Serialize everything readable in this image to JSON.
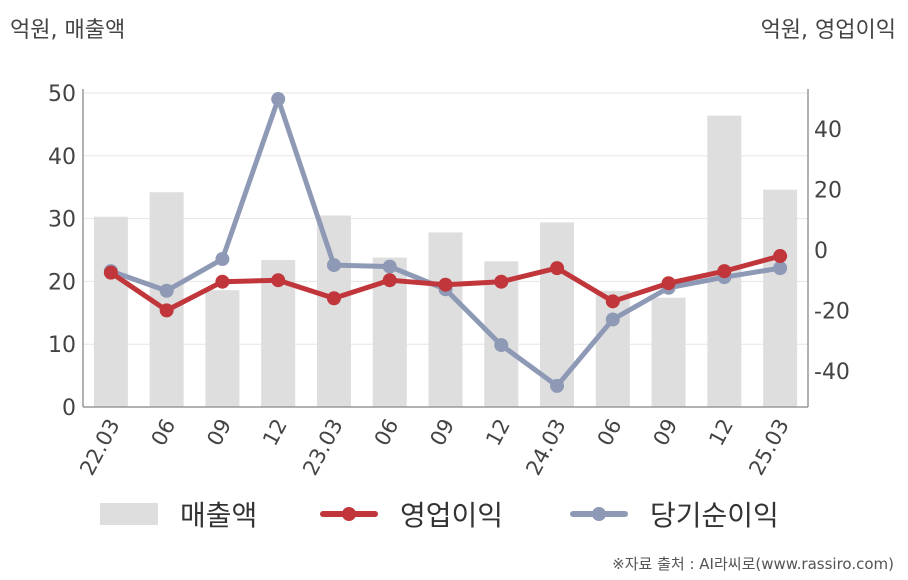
{
  "units": {
    "left": "억원, 매출액",
    "right": "억원, 영업이익"
  },
  "legend": {
    "bar": "매출액",
    "op": "영업이익",
    "net": "당기순이익"
  },
  "source": "※자료 출처 : AI라씨로(www.rassiro.com)",
  "colors": {
    "bar": "#dedede",
    "op": "#c0363a",
    "net": "#8e9ab5",
    "axis": "#999999",
    "grid": "#e6e6e6"
  },
  "chart_data": {
    "type": "bar+line",
    "categories": [
      "22.03",
      "06",
      "09",
      "12",
      "23.03",
      "06",
      "09",
      "12",
      "24.03",
      "06",
      "09",
      "12",
      "25.03"
    ],
    "left_axis": {
      "ylim": [
        0,
        50
      ],
      "ticks": [
        0,
        10,
        20,
        30,
        40,
        50
      ]
    },
    "right_axis": {
      "ylim": [
        -52,
        52
      ],
      "ticks": [
        -40,
        -20,
        0,
        20,
        40
      ]
    },
    "series": [
      {
        "name": "매출액",
        "type": "bar",
        "axis": "left",
        "values": [
          30.3,
          34.2,
          18.6,
          23.4,
          30.5,
          23.8,
          27.8,
          23.2,
          29.4,
          18.5,
          17.4,
          46.4,
          34.6
        ]
      },
      {
        "name": "영업이익",
        "type": "line",
        "axis": "right",
        "values": [
          -7.5,
          -20.0,
          -10.5,
          -10.0,
          -16.0,
          -10.0,
          -11.5,
          -10.5,
          -6.0,
          -17.0,
          -11.0,
          -7.0,
          -2.0
        ]
      },
      {
        "name": "당기순이익",
        "type": "line",
        "axis": "right",
        "values": [
          -7.0,
          -13.5,
          -3.0,
          50.0,
          -5.0,
          -5.5,
          -13.0,
          -31.5,
          -45.0,
          -23.0,
          -12.5,
          -9.0,
          -6.0
        ]
      }
    ]
  }
}
